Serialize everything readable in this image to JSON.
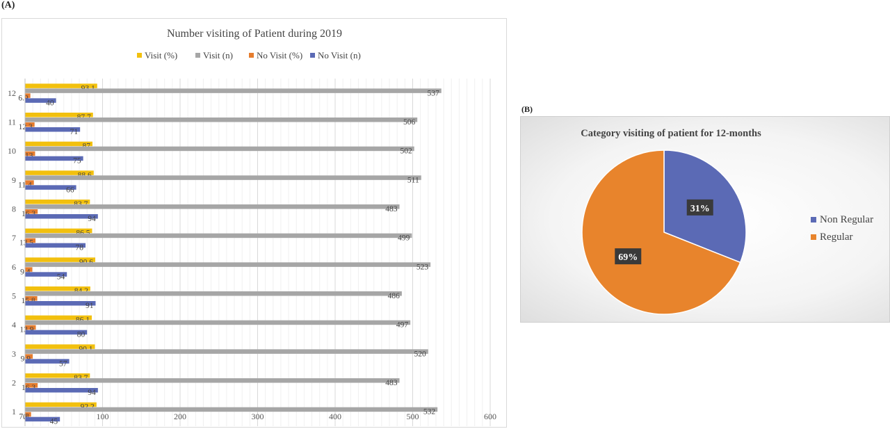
{
  "panel_a_label": "(A)",
  "panel_b_label": "(B)",
  "colors": {
    "visit_pct": "#f2c00e",
    "visit_n": "#a6a6a6",
    "novisit_pct": "#e67d2e",
    "novisit_n": "#5b6ab5",
    "non_regular": "#5b6ab5",
    "regular": "#e8842c"
  },
  "chart_data": [
    {
      "type": "bar",
      "orientation": "horizontal",
      "title": "Number visiting of Patient during 2019",
      "categories": [
        "1",
        "2",
        "3",
        "4",
        "5",
        "6",
        "7",
        "8",
        "9",
        "10",
        "11",
        "12"
      ],
      "series": [
        {
          "name": "Visit (%)",
          "values": [
            92.2,
            83.7,
            90.1,
            86.1,
            84.2,
            90.6,
            86.5,
            83.7,
            88.6,
            87,
            87.7,
            93.1
          ]
        },
        {
          "name": "Visit (n)",
          "values": [
            532,
            483,
            520,
            497,
            486,
            523,
            499,
            483,
            511,
            502,
            506,
            537
          ]
        },
        {
          "name": "No Visit (%)",
          "values": [
            7.8,
            16.3,
            9.9,
            13.9,
            15.8,
            9.4,
            13.5,
            16.3,
            11.4,
            13,
            12.3,
            6.9
          ]
        },
        {
          "name": "No Visit (n)",
          "values": [
            45,
            94,
            57,
            80,
            91,
            54,
            78,
            94,
            66,
            75,
            71,
            40
          ]
        }
      ],
      "xlim": [
        0,
        600
      ],
      "xticks": [
        "0",
        "100",
        "200",
        "300",
        "400",
        "500",
        "600"
      ],
      "grid": true,
      "legend": "top"
    },
    {
      "type": "pie",
      "title": "Category visiting of patient for 12-months",
      "slices": [
        {
          "name": "Non Regular",
          "value": 31,
          "label": "31%"
        },
        {
          "name": "Regular",
          "value": 69,
          "label": "69%"
        }
      ],
      "legend": "right"
    }
  ]
}
